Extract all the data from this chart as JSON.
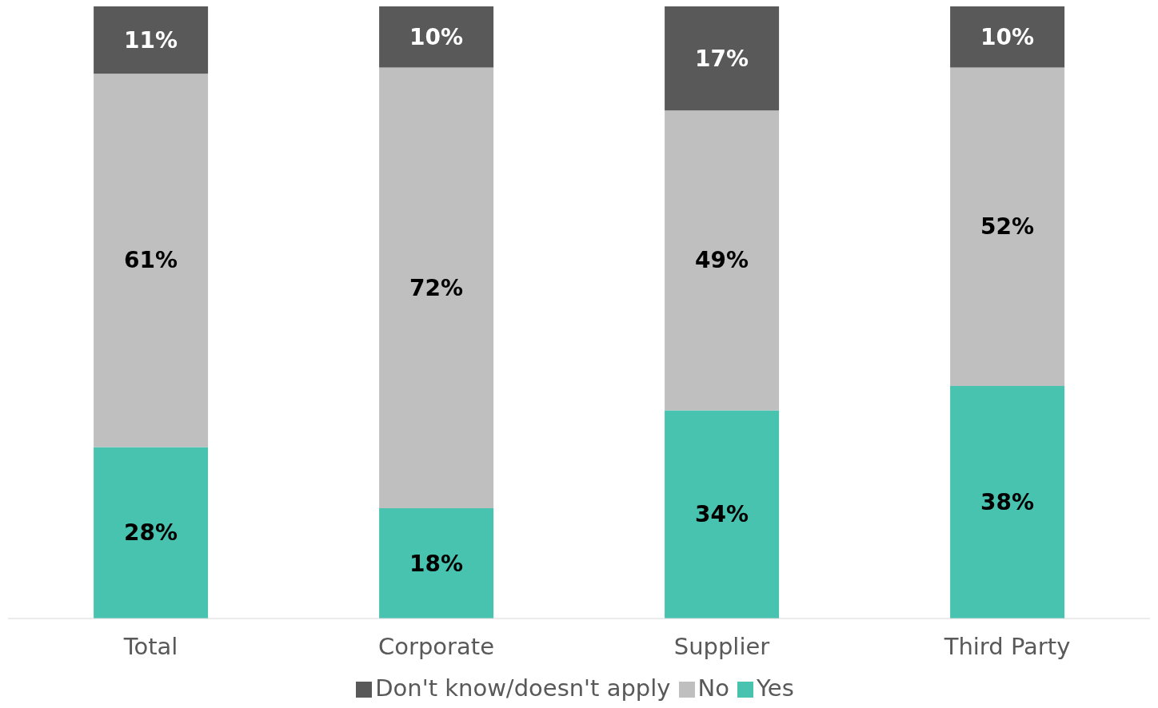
{
  "chart_data": {
    "type": "bar",
    "stacked": true,
    "categories": [
      "Total",
      "Corporate",
      "Supplier",
      "Third Party"
    ],
    "series": [
      {
        "name": "Yes",
        "color": "#47c3b0",
        "values": [
          28,
          18,
          34,
          38
        ],
        "value_labels": [
          "28%",
          "18%",
          "34%",
          "38%"
        ]
      },
      {
        "name": "No",
        "color": "#bfbfbf",
        "values": [
          61,
          72,
          49,
          52
        ],
        "value_labels": [
          "61%",
          "72%",
          "49%",
          "52%"
        ]
      },
      {
        "name": "Don't know/doesn't apply",
        "color": "#595959",
        "values": [
          11,
          10,
          17,
          10
        ],
        "value_labels": [
          "11%",
          "10%",
          "17%",
          "10%"
        ]
      }
    ],
    "legend": "bottom",
    "grid": false
  }
}
